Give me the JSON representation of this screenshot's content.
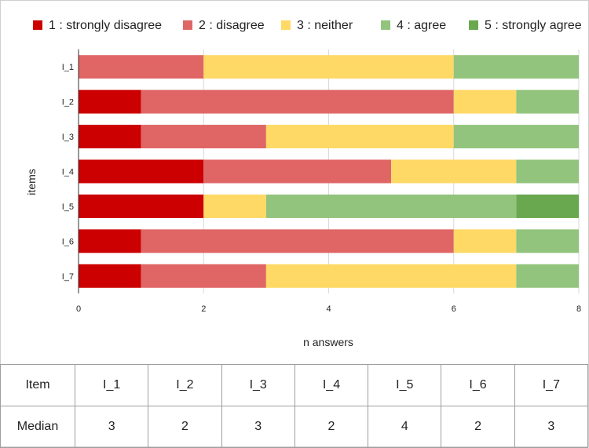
{
  "chart_data": {
    "type": "bar",
    "orientation": "horizontal",
    "stacked": true,
    "categories": [
      "I_1",
      "I_2",
      "I_3",
      "I_4",
      "I_5",
      "I_6",
      "I_7"
    ],
    "series": [
      {
        "name": "1 : strongly disagree",
        "color": "#cc0000",
        "values": [
          0,
          1,
          1,
          2,
          2,
          1,
          1
        ]
      },
      {
        "name": "2 : disagree",
        "color": "#e06666",
        "values": [
          2,
          5,
          2,
          3,
          0,
          5,
          2
        ]
      },
      {
        "name": "3 : neither",
        "color": "#ffd966",
        "values": [
          4,
          1,
          3,
          2,
          1,
          1,
          4
        ]
      },
      {
        "name": "4 : agree",
        "color": "#93c47d",
        "values": [
          2,
          1,
          2,
          1,
          4,
          1,
          1
        ]
      },
      {
        "name": "5 : strongly agree",
        "color": "#6aa84f",
        "values": [
          0,
          0,
          0,
          0,
          1,
          0,
          0
        ]
      }
    ],
    "xlabel": "n answers",
    "ylabel": "items",
    "xlim": [
      0,
      8
    ],
    "xticks": [
      "0",
      "2",
      "4",
      "6",
      "8"
    ],
    "grid": true,
    "legend_position": "top"
  },
  "table": {
    "header_label": "Item",
    "row_label": "Median",
    "items": [
      "I_1",
      "I_2",
      "I_3",
      "I_4",
      "I_5",
      "I_6",
      "I_7"
    ],
    "medians": [
      "3",
      "2",
      "3",
      "2",
      "4",
      "2",
      "3"
    ]
  }
}
